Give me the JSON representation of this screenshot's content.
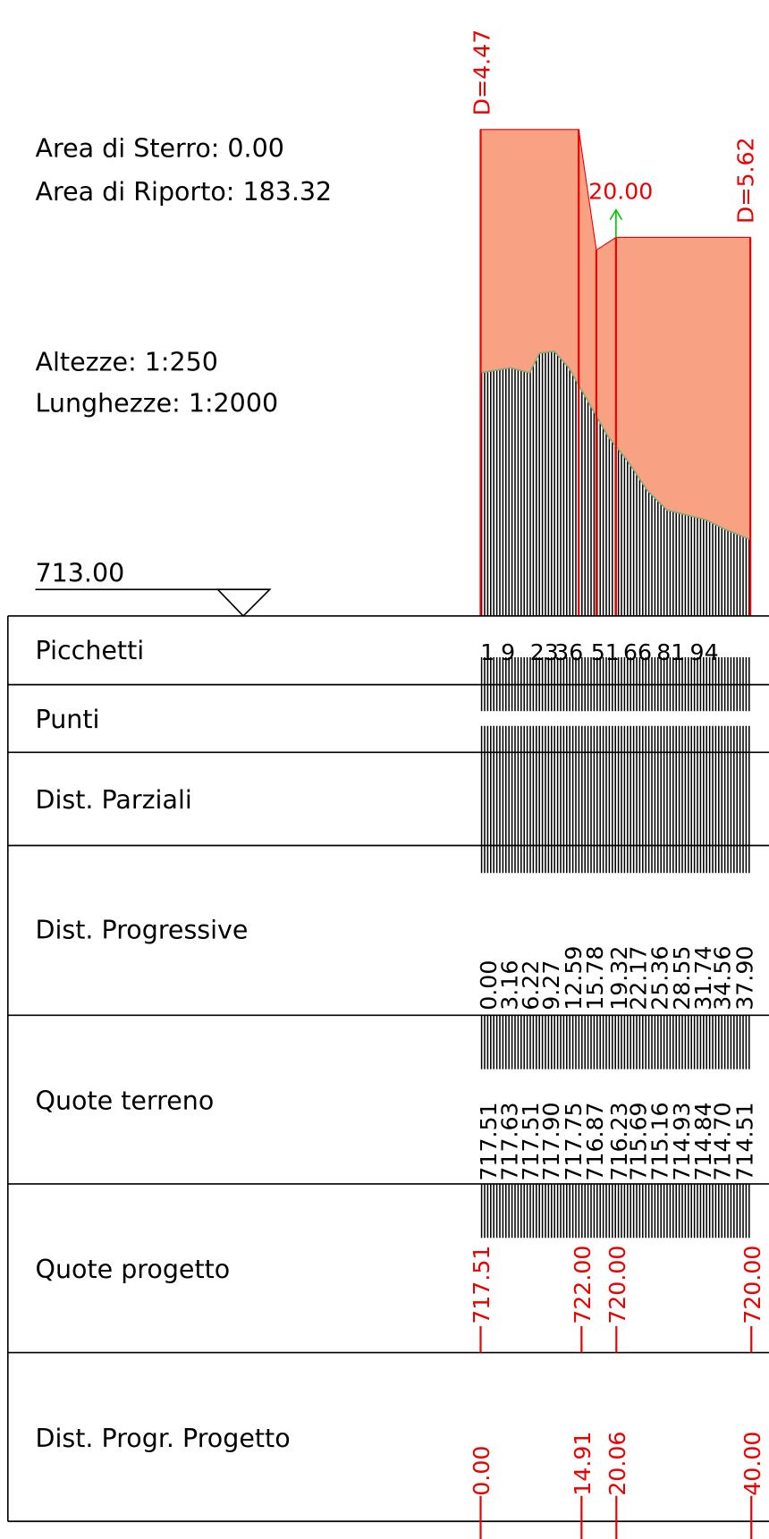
{
  "header": {
    "sterro": "Area di Sterro: 0.00",
    "riporto": "Area di Riporto: 183.32",
    "altezze": "Altezze:  1:250",
    "lunghezze": "Lunghezze: 1:2000",
    "datum": "713.00"
  },
  "profile": {
    "d_start": "D=4.47",
    "d_end": "D=5.62",
    "grade": "20.00"
  },
  "rows": [
    "Picchetti",
    "Punti",
    "Dist. Parziali",
    "Dist. Progressive",
    "Quote terreno",
    "Quote progetto",
    "Dist. Progr. Progetto"
  ],
  "picchetti": [
    "1",
    "9",
    "23",
    "36",
    "51",
    "66",
    "81",
    "94"
  ],
  "dist_progressive": [
    "0.00",
    "3.16",
    "6.22",
    "9.27",
    "12.59",
    "15.78",
    "19.32",
    "22.17",
    "25.36",
    "28.55",
    "31.74",
    "34.56",
    "37.90"
  ],
  "quote_terreno": [
    "717.51",
    "717.63",
    "717.51",
    "717.90",
    "717.75",
    "716.87",
    "716.23",
    "715.69",
    "715.16",
    "714.93",
    "714.84",
    "714.70",
    "714.51"
  ],
  "quote_progetto": [
    "717.51",
    "722.00",
    "720.00",
    "720.00"
  ],
  "dist_progetto": [
    "0.00",
    "14.91",
    "20.06",
    "40.00"
  ]
}
